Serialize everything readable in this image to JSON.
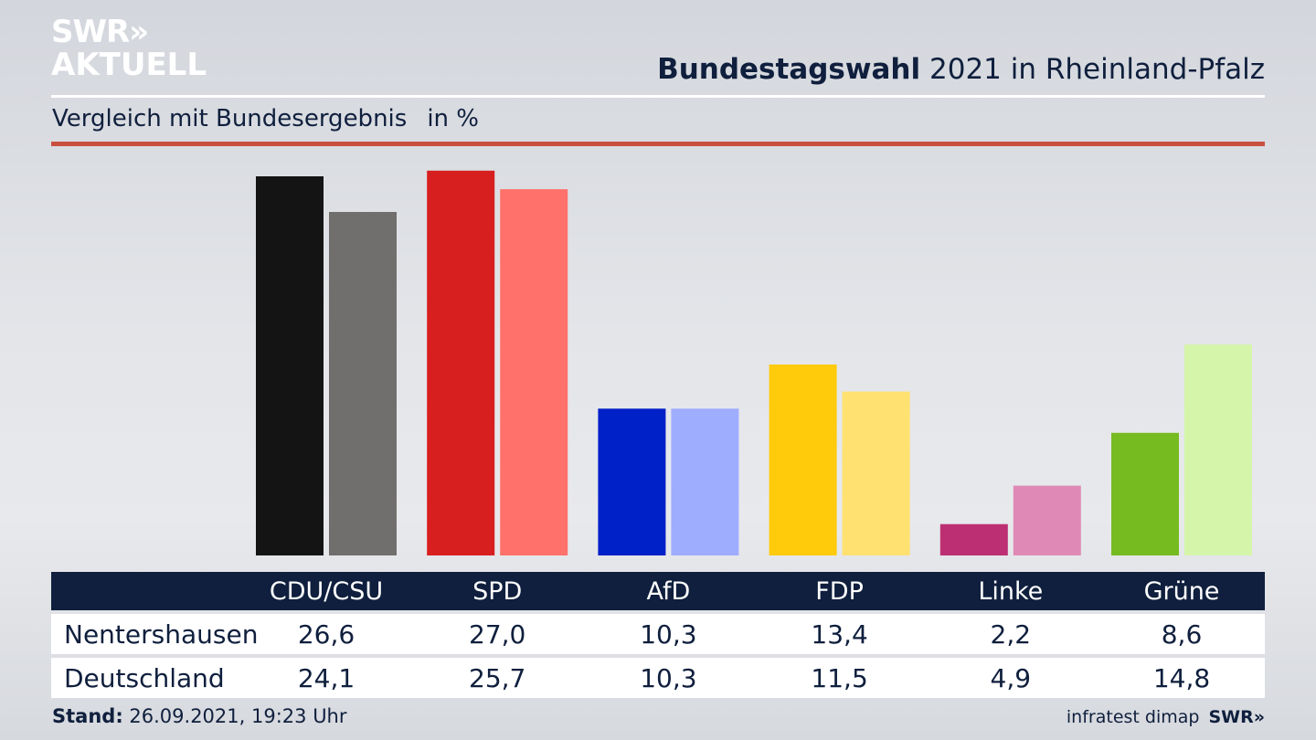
{
  "logo": {
    "line1": "SWR»",
    "line2": "AKTUELL"
  },
  "header": {
    "title_bold": "Bundestagswahl",
    "title_rest": "2021 in Rheinland-Pfalz",
    "subtitle": "Vergleich mit Bundesergebnis",
    "unit": "in %"
  },
  "colors": {
    "title": "#0f1f3d",
    "rule_red": "#c9503f",
    "table_header": "#0f1f3d"
  },
  "chart_data": {
    "type": "bar",
    "title": "Bundestagswahl 2021 in Rheinland-Pfalz",
    "subtitle": "Vergleich mit Bundesergebnis",
    "ylabel": "in %",
    "xlabel": "",
    "ylim": [
      0,
      27.0
    ],
    "grid": false,
    "categories": [
      "CDU/CSU",
      "SPD",
      "AfD",
      "FDP",
      "Linke",
      "Grüne"
    ],
    "series": [
      {
        "name": "Nentershausen",
        "values": [
          26.6,
          27.0,
          10.3,
          13.4,
          2.2,
          8.6
        ],
        "labels": [
          "26,6",
          "27,0",
          "10,3",
          "13,4",
          "2,2",
          "8,6"
        ],
        "colors": [
          "#141414",
          "#d71f1f",
          "#0020c8",
          "#ffcb0a",
          "#bc2f72",
          "#76bb20"
        ]
      },
      {
        "name": "Deutschland",
        "values": [
          24.1,
          25.7,
          10.3,
          11.5,
          4.9,
          14.8
        ],
        "labels": [
          "24,1",
          "25,7",
          "10,3",
          "11,5",
          "4,9",
          "14,8"
        ],
        "colors": [
          "#716f6d",
          "#ff716a",
          "#9fadff",
          "#ffe171",
          "#df8ab6",
          "#d5f5ab"
        ]
      }
    ]
  },
  "footer": {
    "stand_label": "Stand:",
    "stand_value": "26.09.2021, 19:23 Uhr",
    "source": "infratest dimap",
    "brand": "SWR»"
  }
}
